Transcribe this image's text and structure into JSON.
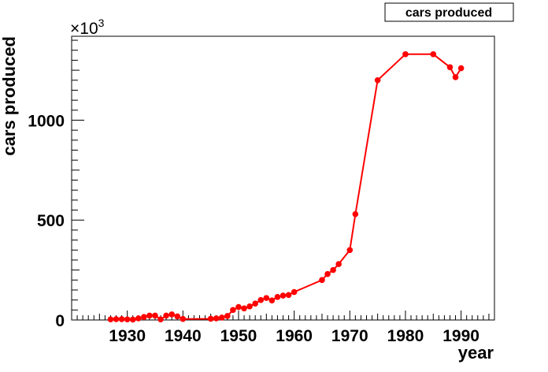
{
  "chart_data": {
    "type": "line",
    "title": "cars produced",
    "xlabel": "year",
    "ylabel": "cars produced",
    "y_multiplier": "×10",
    "y_multiplier_exp": "3",
    "xlim": [
      1920,
      1996
    ],
    "ylim": [
      0,
      1420
    ],
    "x_ticks": [
      "1930",
      "1940",
      "1950",
      "1960",
      "1970",
      "1980",
      "1990"
    ],
    "y_ticks": [
      "0",
      "500",
      "1000"
    ],
    "grid": false,
    "legend": "top-right",
    "marker_color": "#ff0000",
    "series": [
      {
        "name": "cars produced",
        "x": [
          1927,
          1928,
          1929,
          1930,
          1931,
          1932,
          1933,
          1934,
          1935,
          1936,
          1937,
          1938,
          1939,
          1940,
          1945,
          1946,
          1947,
          1948,
          1949,
          1950,
          1951,
          1952,
          1953,
          1954,
          1955,
          1956,
          1957,
          1958,
          1959,
          1960,
          1965,
          1966,
          1967,
          1968,
          1970,
          1971,
          1975,
          1980,
          1985,
          1988,
          1989,
          1990
        ],
        "y": [
          3,
          4,
          4,
          3,
          2,
          8,
          15,
          22,
          22,
          3,
          22,
          28,
          18,
          5,
          6,
          8,
          12,
          20,
          50,
          65,
          58,
          68,
          82,
          100,
          110,
          98,
          115,
          122,
          125,
          140,
          200,
          230,
          250,
          280,
          350,
          530,
          1200,
          1330,
          1330,
          1265,
          1215,
          1260
        ]
      }
    ]
  }
}
